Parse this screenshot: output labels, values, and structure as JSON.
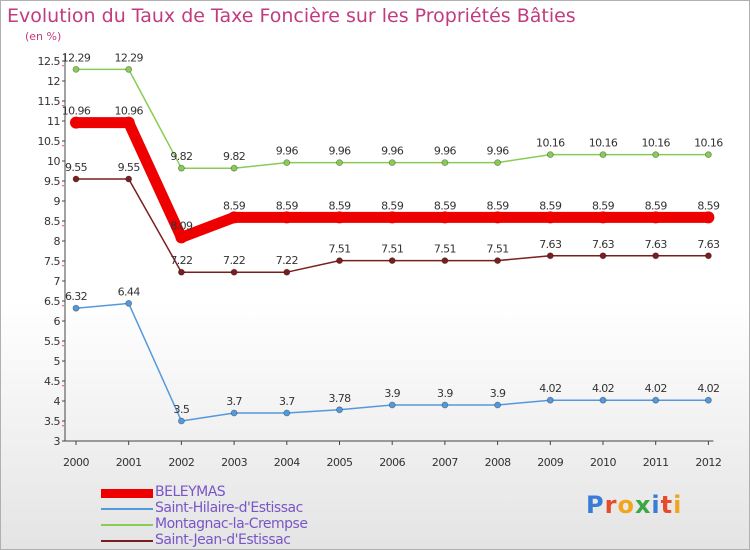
{
  "title": "Evolution du Taux de Taxe Foncière sur les Propriétés Bâties",
  "subtitle": "(en %)",
  "logo": {
    "text": "Proxiti",
    "letter_colors": [
      "#3a7dd8",
      "#e64b2c",
      "#f2a51c",
      "#3ca845",
      "#3a7dd8",
      "#e64b2c",
      "#f2a51c"
    ]
  },
  "chart_data": {
    "type": "line",
    "x": [
      "2000",
      "2001",
      "2002",
      "2003",
      "2004",
      "2005",
      "2006",
      "2007",
      "2008",
      "2009",
      "2010",
      "2011",
      "2012"
    ],
    "ylim": [
      3,
      12.5
    ],
    "yticks": [
      "3",
      "3.5",
      "4",
      "4.5",
      "5",
      "5.5",
      "6",
      "6.5",
      "7",
      "7.5",
      "8",
      "8.5",
      "9",
      "9.5",
      "10",
      "10.5",
      "11",
      "11.5",
      "12",
      "12.5"
    ],
    "grid": false,
    "legend_position": "bottom-left",
    "series": [
      {
        "name": "Montagnac-la-Crempse",
        "color": "#88cc55",
        "width": "thin",
        "values": [
          12.29,
          12.29,
          9.82,
          9.82,
          9.96,
          9.96,
          9.96,
          9.96,
          9.96,
          10.16,
          10.16,
          10.16,
          10.16
        ],
        "labels": [
          "12.29",
          "12.29",
          "9.82",
          "9.82",
          "9.96",
          "9.96",
          "9.96",
          "9.96",
          "9.96",
          "10.16",
          "10.16",
          "10.16",
          "10.16"
        ]
      },
      {
        "name": "BELEYMAS",
        "color": "#ee0000",
        "width": "thick",
        "values": [
          10.96,
          10.96,
          8.09,
          8.59,
          8.59,
          8.59,
          8.59,
          8.59,
          8.59,
          8.59,
          8.59,
          8.59,
          8.59
        ],
        "labels": [
          "10.96",
          "10.96",
          "8.09",
          "8.59",
          "8.59",
          "8.59",
          "8.59",
          "8.59",
          "8.59",
          "8.59",
          "8.59",
          "8.59",
          "8.59"
        ]
      },
      {
        "name": "Saint-Jean-d'Estissac",
        "color": "#7a1f1f",
        "width": "thin",
        "values": [
          9.55,
          9.55,
          7.22,
          7.22,
          7.22,
          7.51,
          7.51,
          7.51,
          7.51,
          7.63,
          7.63,
          7.63,
          7.63
        ],
        "labels": [
          "9.55",
          "9.55",
          "7.22",
          "7.22",
          "7.22",
          "7.51",
          "7.51",
          "7.51",
          "7.51",
          "7.63",
          "7.63",
          "7.63",
          "7.63"
        ]
      },
      {
        "name": "Saint-Hilaire-d'Estissac",
        "color": "#5599dd",
        "width": "thin",
        "values": [
          6.32,
          6.44,
          3.5,
          3.7,
          3.7,
          3.78,
          3.9,
          3.9,
          3.9,
          4.02,
          4.02,
          4.02,
          4.02
        ],
        "labels": [
          "6.32",
          "6.44",
          "3.5",
          "3.7",
          "3.7",
          "3.78",
          "3.9",
          "3.9",
          "3.9",
          "4.02",
          "4.02",
          "4.02",
          "4.02"
        ]
      }
    ],
    "legend": [
      {
        "name": "BELEYMAS",
        "color": "#ee0000",
        "width": "thick"
      },
      {
        "name": "Saint-Hilaire-d'Estissac",
        "color": "#5599dd",
        "width": "thin"
      },
      {
        "name": "Montagnac-la-Crempse",
        "color": "#88cc55",
        "width": "thin"
      },
      {
        "name": "Saint-Jean-d'Estissac",
        "color": "#7a1f1f",
        "width": "thin"
      }
    ]
  }
}
